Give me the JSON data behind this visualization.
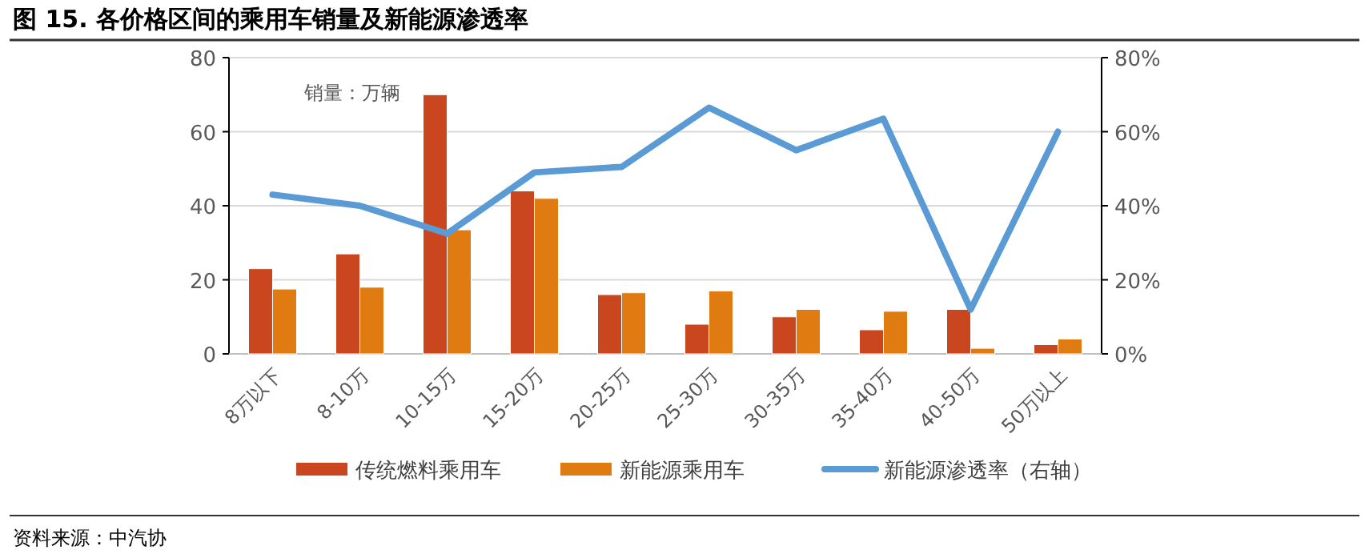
{
  "chart_data": {
    "type": "bar",
    "title": "图 15. 各价格区间的乘用车销量及新能源渗透率",
    "annotations": [
      "销量：万辆",
      "资料来源：中汽协"
    ],
    "categories": [
      "8万以下",
      "8-10万",
      "10-15万",
      "15-20万",
      "20-25万",
      "25-30万",
      "30-35万",
      "35-40万",
      "40-50万",
      "50万以上"
    ],
    "series": [
      {
        "name": "传统燃料乘用车",
        "color": "#c9461e",
        "values": [
          23,
          27,
          70,
          44,
          16,
          8,
          10,
          6.5,
          12,
          2.5
        ]
      },
      {
        "name": "新能源乘用车",
        "color": "#e07b12",
        "values": [
          17.5,
          18,
          33.5,
          42,
          16.5,
          17,
          12,
          11.5,
          1.5,
          4
        ]
      },
      {
        "name": "新能源渗透率（右轴）",
        "type": "line",
        "axis": "y2",
        "color": "#5b9bd5",
        "values": [
          0.43,
          0.4,
          0.325,
          0.49,
          0.505,
          0.665,
          0.55,
          0.635,
          0.12,
          0.6
        ]
      }
    ],
    "ylim": [
      0,
      80
    ],
    "yticks": [
      0,
      20,
      40,
      60,
      80
    ],
    "y2lim": [
      0,
      0.8
    ],
    "y2ticks": [
      {
        "value": 0,
        "label": "0%"
      },
      {
        "value": 0.2,
        "label": "20%"
      },
      {
        "value": 0.4,
        "label": "40%"
      },
      {
        "value": 0.6,
        "label": "60%"
      },
      {
        "value": 0.8,
        "label": "80%"
      }
    ],
    "grid": "y",
    "legend": "bottom",
    "marker": "none",
    "line_style": "solid"
  }
}
